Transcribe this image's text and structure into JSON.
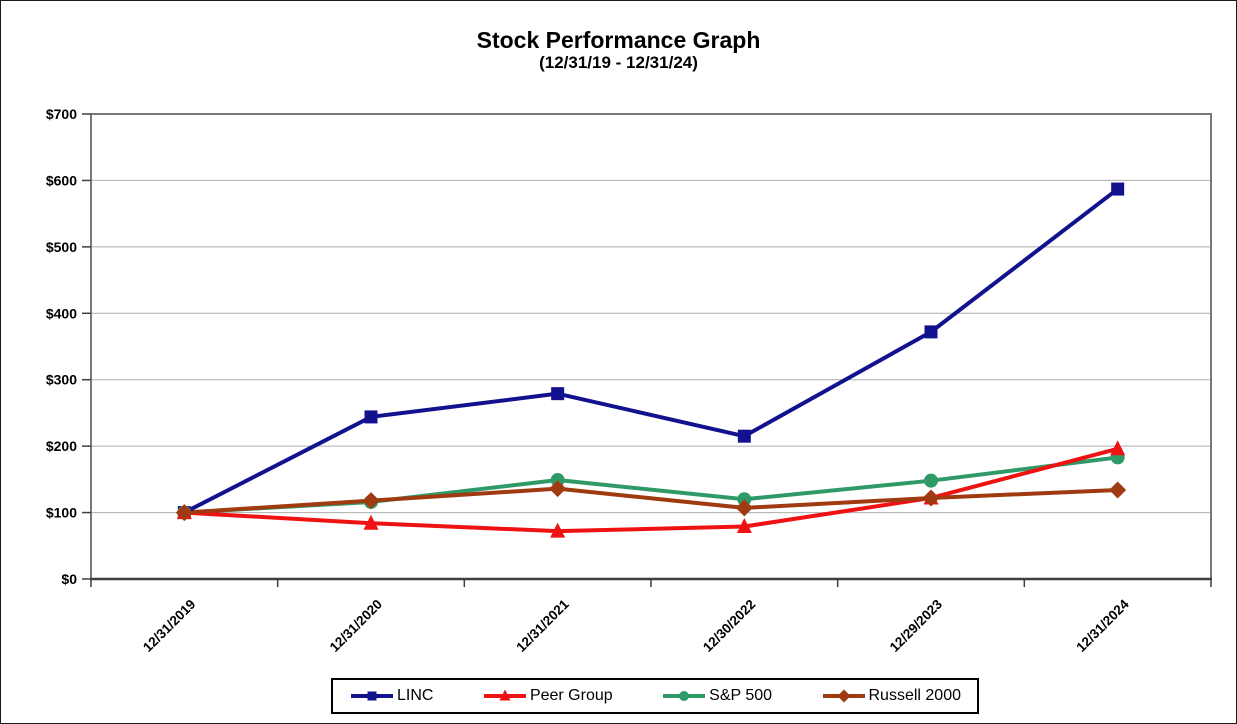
{
  "chart_data": {
    "type": "line",
    "title": "Stock Performance Graph",
    "subtitle": "(12/31/19 - 12/31/24)",
    "categories": [
      "12/31/2019",
      "12/31/2020",
      "12/31/2021",
      "12/30/2022",
      "12/29/2023",
      "12/31/2024"
    ],
    "series": [
      {
        "name": "LINC",
        "color": "#12128F",
        "marker": "square",
        "values": [
          100,
          244,
          279,
          215,
          372,
          587
        ]
      },
      {
        "name": "Peer Group",
        "color": "#EE1212",
        "marker": "triangle",
        "values": [
          100,
          84,
          72,
          79,
          122,
          196
        ]
      },
      {
        "name": "S&P 500",
        "color": "#2F9A68",
        "marker": "circle",
        "values": [
          100,
          116,
          149,
          120,
          148,
          183
        ]
      },
      {
        "name": "Russell 2000",
        "color": "#A03A10",
        "marker": "diamond",
        "values": [
          100,
          118,
          136,
          107,
          122,
          134
        ]
      }
    ],
    "ylim": [
      0,
      700
    ],
    "ytick_interval": 100,
    "ytick_labels": [
      "$0",
      "$100",
      "$200",
      "$300",
      "$400",
      "$500",
      "$600",
      "$700"
    ],
    "grid": true,
    "legend_position": "bottom",
    "axis_colors": {
      "grid": "#ADADAD",
      "border": "#787878",
      "axis": "#3F3F3F",
      "tick": "#3F3F3F"
    }
  }
}
